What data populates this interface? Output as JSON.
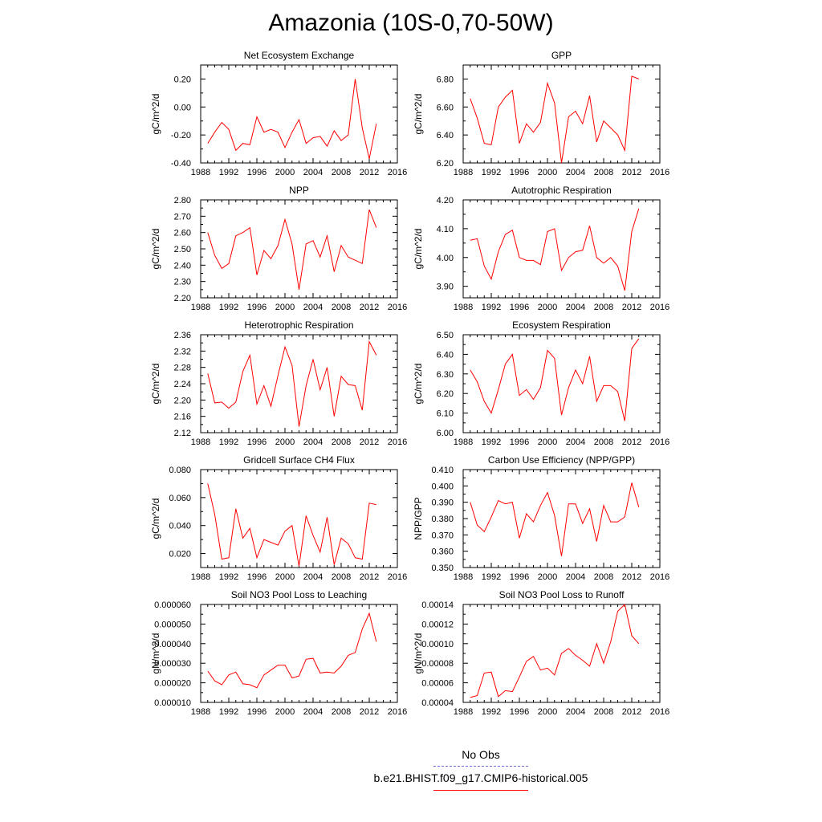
{
  "title": "Amazonia (10S-0,70-50W)",
  "legend": {
    "no_obs": "No Obs",
    "run": "b.e21.BHIST.f09_g17.CMIP6-historical.005",
    "colors": {
      "no_obs": "#6a6ad0",
      "run": "#ff0000"
    }
  },
  "chart_data": [
    {
      "type": "line",
      "title": "Net Ecosystem Exchange",
      "ylabel": "gC/m^2/d",
      "xlabel": "",
      "xlim": [
        1988,
        2016
      ],
      "xticks": [
        "1988",
        "1992",
        "1996",
        "2000",
        "2004",
        "2008",
        "2012",
        "2016"
      ],
      "ylim": [
        -0.4,
        0.3
      ],
      "yticks": [
        "-0.40",
        "-0.20",
        "0.00",
        "0.20"
      ],
      "ytick_values": [
        -0.4,
        -0.2,
        0.0,
        0.2
      ],
      "series": [
        {
          "color": "#ff0000",
          "x": [
            1989,
            1990,
            1991,
            1992,
            1993,
            1994,
            1995,
            1996,
            1997,
            1998,
            1999,
            2000,
            2001,
            2002,
            2003,
            2004,
            2005,
            2006,
            2007,
            2008,
            2009,
            2010,
            2011,
            2012,
            2013
          ],
          "values": [
            -0.26,
            -0.18,
            -0.11,
            -0.16,
            -0.31,
            -0.26,
            -0.27,
            -0.07,
            -0.18,
            -0.16,
            -0.18,
            -0.29,
            -0.18,
            -0.09,
            -0.26,
            -0.22,
            -0.21,
            -0.28,
            -0.17,
            -0.24,
            -0.2,
            0.2,
            -0.15,
            -0.37,
            -0.12
          ]
        }
      ]
    },
    {
      "type": "line",
      "title": "GPP",
      "ylabel": "gC/m^2/d",
      "xlabel": "",
      "xlim": [
        1988,
        2016
      ],
      "xticks": [
        "1988",
        "1992",
        "1996",
        "2000",
        "2004",
        "2008",
        "2012",
        "2016"
      ],
      "ylim": [
        6.2,
        6.9
      ],
      "yticks": [
        "6.20",
        "6.40",
        "6.60",
        "6.80"
      ],
      "ytick_values": [
        6.2,
        6.4,
        6.6,
        6.8
      ],
      "series": [
        {
          "color": "#ff0000",
          "x": [
            1989,
            1990,
            1991,
            1992,
            1993,
            1994,
            1995,
            1996,
            1997,
            1998,
            1999,
            2000,
            2001,
            2002,
            2003,
            2004,
            2005,
            2006,
            2007,
            2008,
            2009,
            2010,
            2011,
            2012,
            2013
          ],
          "values": [
            6.66,
            6.52,
            6.34,
            6.33,
            6.6,
            6.67,
            6.72,
            6.34,
            6.48,
            6.42,
            6.49,
            6.77,
            6.63,
            6.2,
            6.53,
            6.57,
            6.48,
            6.68,
            6.35,
            6.5,
            6.45,
            6.4,
            6.29,
            6.82,
            6.8
          ]
        }
      ]
    },
    {
      "type": "line",
      "title": "NPP",
      "ylabel": "gC/m^2/d",
      "xlabel": "",
      "xlim": [
        1988,
        2016
      ],
      "xticks": [
        "1988",
        "1992",
        "1996",
        "2000",
        "2004",
        "2008",
        "2012",
        "2016"
      ],
      "ylim": [
        2.2,
        2.8
      ],
      "yticks": [
        "2.20",
        "2.30",
        "2.40",
        "2.50",
        "2.60",
        "2.70",
        "2.80"
      ],
      "ytick_values": [
        2.2,
        2.3,
        2.4,
        2.5,
        2.6,
        2.7,
        2.8
      ],
      "series": [
        {
          "color": "#ff0000",
          "x": [
            1989,
            1990,
            1991,
            1992,
            1993,
            1994,
            1995,
            1996,
            1997,
            1998,
            1999,
            2000,
            2001,
            2002,
            2003,
            2004,
            2005,
            2006,
            2007,
            2008,
            2009,
            2010,
            2011,
            2012,
            2013
          ],
          "values": [
            2.6,
            2.46,
            2.38,
            2.41,
            2.58,
            2.6,
            2.63,
            2.34,
            2.49,
            2.44,
            2.52,
            2.68,
            2.53,
            2.25,
            2.53,
            2.55,
            2.45,
            2.58,
            2.36,
            2.52,
            2.45,
            2.43,
            2.41,
            2.74,
            2.63
          ]
        }
      ]
    },
    {
      "type": "line",
      "title": "Autotrophic Respiration",
      "ylabel": "gC/m^2/d",
      "xlabel": "",
      "xlim": [
        1988,
        2016
      ],
      "xticks": [
        "1988",
        "1992",
        "1996",
        "2000",
        "2004",
        "2008",
        "2012",
        "2016"
      ],
      "ylim": [
        3.86,
        4.2
      ],
      "yticks": [
        "3.90",
        "4.00",
        "4.10",
        "4.20"
      ],
      "ytick_values": [
        3.9,
        4.0,
        4.1,
        4.2
      ],
      "series": [
        {
          "color": "#ff0000",
          "x": [
            1989,
            1990,
            1991,
            1992,
            1993,
            1994,
            1995,
            1996,
            1997,
            1998,
            1999,
            2000,
            2001,
            2002,
            2003,
            2004,
            2005,
            2006,
            2007,
            2008,
            2009,
            2010,
            2011,
            2012,
            2013
          ],
          "values": [
            4.06,
            4.065,
            3.97,
            3.925,
            4.02,
            4.08,
            4.095,
            4.0,
            3.99,
            3.99,
            3.975,
            4.09,
            4.1,
            3.955,
            4.0,
            4.02,
            4.025,
            4.11,
            4.0,
            3.98,
            4.0,
            3.97,
            3.885,
            4.09,
            4.17
          ]
        }
      ]
    },
    {
      "type": "line",
      "title": "Heterotrophic Respiration",
      "ylabel": "gC/m^2/d",
      "xlabel": "",
      "xlim": [
        1988,
        2016
      ],
      "xticks": [
        "1988",
        "1992",
        "1996",
        "2000",
        "2004",
        "2008",
        "2012",
        "2016"
      ],
      "ylim": [
        2.12,
        2.36
      ],
      "yticks": [
        "2.12",
        "2.16",
        "2.20",
        "2.24",
        "2.28",
        "2.32",
        "2.36"
      ],
      "ytick_values": [
        2.12,
        2.16,
        2.2,
        2.24,
        2.28,
        2.32,
        2.36
      ],
      "series": [
        {
          "color": "#ff0000",
          "x": [
            1989,
            1990,
            1991,
            1992,
            1993,
            1994,
            1995,
            1996,
            1997,
            1998,
            1999,
            2000,
            2001,
            2002,
            2003,
            2004,
            2005,
            2006,
            2007,
            2008,
            2009,
            2010,
            2011,
            2012,
            2013
          ],
          "values": [
            2.265,
            2.193,
            2.195,
            2.18,
            2.195,
            2.27,
            2.31,
            2.19,
            2.235,
            2.185,
            2.26,
            2.33,
            2.285,
            2.135,
            2.235,
            2.3,
            2.225,
            2.28,
            2.16,
            2.258,
            2.238,
            2.235,
            2.175,
            2.343,
            2.31
          ]
        }
      ]
    },
    {
      "type": "line",
      "title": "Ecosystem Respiration",
      "ylabel": "gC/m^2/d",
      "xlabel": "",
      "xlim": [
        1988,
        2016
      ],
      "xticks": [
        "1988",
        "1992",
        "1996",
        "2000",
        "2004",
        "2008",
        "2012",
        "2016"
      ],
      "ylim": [
        6.0,
        6.5
      ],
      "yticks": [
        "6.00",
        "6.10",
        "6.20",
        "6.30",
        "6.40",
        "6.50"
      ],
      "ytick_values": [
        6.0,
        6.1,
        6.2,
        6.3,
        6.4,
        6.5
      ],
      "series": [
        {
          "color": "#ff0000",
          "x": [
            1989,
            1990,
            1991,
            1992,
            1993,
            1994,
            1995,
            1996,
            1997,
            1998,
            1999,
            2000,
            2001,
            2002,
            2003,
            2004,
            2005,
            2006,
            2007,
            2008,
            2009,
            2010,
            2011,
            2012,
            2013
          ],
          "values": [
            6.32,
            6.26,
            6.16,
            6.1,
            6.22,
            6.35,
            6.4,
            6.19,
            6.22,
            6.17,
            6.23,
            6.42,
            6.38,
            6.09,
            6.23,
            6.32,
            6.25,
            6.39,
            6.16,
            6.24,
            6.24,
            6.21,
            6.06,
            6.43,
            6.48
          ]
        }
      ]
    },
    {
      "type": "line",
      "title": "Gridcell Surface CH4 Flux",
      "ylabel": "gC/m^2/d",
      "xlabel": "",
      "xlim": [
        1988,
        2016
      ],
      "xticks": [
        "1988",
        "1992",
        "1996",
        "2000",
        "2004",
        "2008",
        "2012",
        "2016"
      ],
      "ylim": [
        0.01,
        0.08
      ],
      "yticks": [
        "0.020",
        "0.040",
        "0.060",
        "0.080"
      ],
      "ytick_values": [
        0.02,
        0.04,
        0.06,
        0.08
      ],
      "series": [
        {
          "color": "#ff0000",
          "x": [
            1989,
            1990,
            1991,
            1992,
            1993,
            1994,
            1995,
            1996,
            1997,
            1998,
            1999,
            2000,
            2001,
            2002,
            2003,
            2004,
            2005,
            2006,
            2007,
            2008,
            2009,
            2010,
            2011,
            2012,
            2013
          ],
          "values": [
            0.07,
            0.048,
            0.016,
            0.017,
            0.052,
            0.031,
            0.038,
            0.017,
            0.03,
            0.028,
            0.026,
            0.036,
            0.04,
            0.011,
            0.047,
            0.033,
            0.021,
            0.046,
            0.012,
            0.031,
            0.027,
            0.017,
            0.016,
            0.056,
            0.055
          ]
        }
      ]
    },
    {
      "type": "line",
      "title": "Carbon Use Efficiency (NPP/GPP)",
      "ylabel": "NPP/GPP",
      "xlabel": "",
      "xlim": [
        1988,
        2016
      ],
      "xticks": [
        "1988",
        "1992",
        "1996",
        "2000",
        "2004",
        "2008",
        "2012",
        "2016"
      ],
      "ylim": [
        0.35,
        0.41
      ],
      "yticks": [
        "0.350",
        "0.360",
        "0.370",
        "0.380",
        "0.390",
        "0.400",
        "0.410"
      ],
      "ytick_values": [
        0.35,
        0.36,
        0.37,
        0.38,
        0.39,
        0.4,
        0.41
      ],
      "series": [
        {
          "color": "#ff0000",
          "x": [
            1989,
            1990,
            1991,
            1992,
            1993,
            1994,
            1995,
            1996,
            1997,
            1998,
            1999,
            2000,
            2001,
            2002,
            2003,
            2004,
            2005,
            2006,
            2007,
            2008,
            2009,
            2010,
            2011,
            2012,
            2013
          ],
          "values": [
            0.39,
            0.376,
            0.372,
            0.381,
            0.391,
            0.389,
            0.39,
            0.368,
            0.383,
            0.378,
            0.388,
            0.396,
            0.382,
            0.357,
            0.389,
            0.389,
            0.377,
            0.386,
            0.366,
            0.388,
            0.378,
            0.378,
            0.381,
            0.402,
            0.387
          ]
        }
      ]
    },
    {
      "type": "line",
      "title": "Soil NO3 Pool Loss to Leaching",
      "ylabel": "gN/m^2/d",
      "xlabel": "",
      "xlim": [
        1988,
        2016
      ],
      "xticks": [
        "1988",
        "1992",
        "1996",
        "2000",
        "2004",
        "2008",
        "2012",
        "2016"
      ],
      "ylim": [
        1e-05,
        6e-05
      ],
      "yticks": [
        "0.000010",
        "0.000020",
        "0.000030",
        "0.000040",
        "0.000050",
        "0.000060"
      ],
      "ytick_values": [
        1e-05,
        2e-05,
        3e-05,
        4e-05,
        5e-05,
        6e-05
      ],
      "series": [
        {
          "color": "#ff0000",
          "x": [
            1989,
            1990,
            1991,
            1992,
            1993,
            1994,
            1995,
            1996,
            1997,
            1998,
            1999,
            2000,
            2001,
            2002,
            2003,
            2004,
            2005,
            2006,
            2007,
            2008,
            2009,
            2010,
            2011,
            2012,
            2013
          ],
          "values": [
            2.6e-05,
            2.1e-05,
            1.9e-05,
            2.4e-05,
            2.55e-05,
            1.95e-05,
            1.9e-05,
            1.75e-05,
            2.4e-05,
            2.65e-05,
            2.9e-05,
            2.9e-05,
            2.25e-05,
            2.35e-05,
            3.2e-05,
            3.25e-05,
            2.5e-05,
            2.55e-05,
            2.5e-05,
            2.85e-05,
            3.4e-05,
            3.55e-05,
            4.75e-05,
            5.55e-05,
            4.1e-05
          ]
        }
      ]
    },
    {
      "type": "line",
      "title": "Soil NO3 Pool Loss to Runoff",
      "ylabel": "gN/m^2/d",
      "xlabel": "",
      "xlim": [
        1988,
        2016
      ],
      "xticks": [
        "1988",
        "1992",
        "1996",
        "2000",
        "2004",
        "2008",
        "2012",
        "2016"
      ],
      "ylim": [
        4e-05,
        0.00014
      ],
      "yticks": [
        "0.00004",
        "0.00006",
        "0.00008",
        "0.00010",
        "0.00012",
        "0.00014"
      ],
      "ytick_values": [
        4e-05,
        6e-05,
        8e-05,
        0.0001,
        0.00012,
        0.00014
      ],
      "series": [
        {
          "color": "#ff0000",
          "x": [
            1989,
            1990,
            1991,
            1992,
            1993,
            1994,
            1995,
            1996,
            1997,
            1998,
            1999,
            2000,
            2001,
            2002,
            2003,
            2004,
            2005,
            2006,
            2007,
            2008,
            2009,
            2010,
            2011,
            2012,
            2013
          ],
          "values": [
            4.5e-05,
            4.7e-05,
            7e-05,
            7.1e-05,
            4.6e-05,
            5.2e-05,
            5.1e-05,
            6.6e-05,
            8.2e-05,
            8.7e-05,
            7.3e-05,
            7.5e-05,
            6.8e-05,
            9e-05,
            9.5e-05,
            8.8e-05,
            8.3e-05,
            7.7e-05,
            0.0001,
            8e-05,
            0.000102,
            0.000133,
            0.00014,
            0.000108,
            0.0001
          ]
        }
      ]
    }
  ]
}
